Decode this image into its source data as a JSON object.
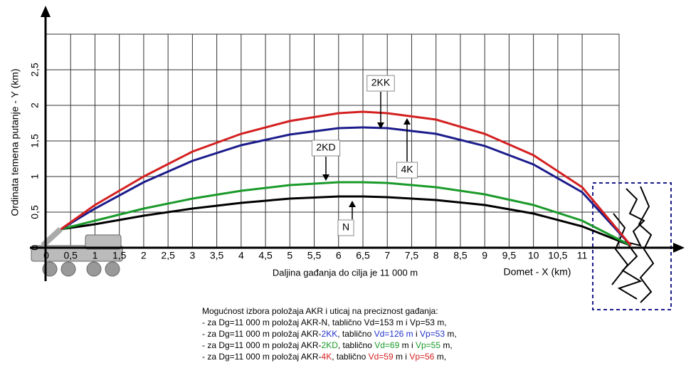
{
  "chart_data": {
    "type": "line",
    "ylabel": "Ordinata temena putanje - Y (km)",
    "xlabel": "Domet - X (km)",
    "note": "Daljina gađanja do cilja je 11 000 m",
    "xlim": [
      0,
      13
    ],
    "ylim": [
      0,
      3
    ],
    "xticks": [
      0,
      {
        "value": 0.5,
        "label": "0,5"
      },
      1,
      {
        "value": 1.5,
        "label": "1,5"
      },
      2,
      {
        "value": 2.5,
        "label": "2,5"
      },
      3,
      {
        "value": 3.5,
        "label": "3,5"
      },
      4,
      {
        "value": 4.5,
        "label": "4,5"
      },
      5,
      {
        "value": 5.5,
        "label": "5,5"
      },
      6,
      {
        "value": 6.5,
        "label": "6,5"
      },
      7,
      {
        "value": 7.5,
        "label": "7,5"
      },
      8,
      {
        "value": 8.5,
        "label": "8,5"
      },
      9,
      {
        "value": 9.5,
        "label": "9,5"
      },
      10,
      {
        "value": 10.5,
        "label": "10,5"
      },
      11
    ],
    "yticks": [
      0,
      {
        "value": 0.5,
        "label": "0,5"
      },
      1,
      {
        "value": 1.5,
        "label": "1,5"
      },
      2,
      {
        "value": 2.5,
        "label": "2,5"
      }
    ],
    "grid": true,
    "x": [
      0.3,
      1,
      2,
      3,
      4,
      5,
      6,
      6.5,
      7,
      8,
      9,
      10,
      11,
      12
    ],
    "series": [
      {
        "name": "N",
        "color": "#000000",
        "values": [
          0.26,
          0.33,
          0.45,
          0.55,
          0.63,
          0.69,
          0.72,
          0.72,
          0.71,
          0.67,
          0.6,
          0.48,
          0.3,
          0.03
        ]
      },
      {
        "name": "2KD",
        "color": "#1a9a2a",
        "values": [
          0.26,
          0.38,
          0.55,
          0.69,
          0.8,
          0.88,
          0.92,
          0.92,
          0.91,
          0.85,
          0.75,
          0.6,
          0.38,
          0.03
        ]
      },
      {
        "name": "2KK",
        "color": "#1c1c8c",
        "values": [
          0.26,
          0.55,
          0.92,
          1.22,
          1.44,
          1.59,
          1.68,
          1.69,
          1.68,
          1.6,
          1.43,
          1.17,
          0.78,
          0.03
        ]
      },
      {
        "name": "4K",
        "color": "#d42020",
        "values": [
          0.26,
          0.6,
          1.0,
          1.35,
          1.6,
          1.78,
          1.89,
          1.91,
          1.89,
          1.8,
          1.6,
          1.3,
          0.85,
          0.03
        ]
      }
    ],
    "caption": {
      "title": "Mogućnost izbora položaja AKR i uticaj na preciznost gađanja:",
      "lines": [
        [
          {
            "text": "- za Dg=11 000 m položaj AKR-N, tablično Vd=153 m i Vp=53 m,",
            "color": "#000000"
          }
        ],
        [
          {
            "text": "- za Dg=11 000 m položaj AKR-",
            "color": "#000000"
          },
          {
            "text": "2KK",
            "color": "#2233cc"
          },
          {
            "text": ", tablično ",
            "color": "#000000"
          },
          {
            "text": "Vd=126 m",
            "color": "#2233cc"
          },
          {
            "text": " i ",
            "color": "#000000"
          },
          {
            "text": "Vp=53",
            "color": "#2233cc"
          },
          {
            "text": " m,",
            "color": "#000000"
          }
        ],
        [
          {
            "text": "- za Dg=11 000 m položaj AKR-",
            "color": "#000000"
          },
          {
            "text": "2KD",
            "color": "#1a9a2a"
          },
          {
            "text": ", tablično ",
            "color": "#000000"
          },
          {
            "text": "Vd=69",
            "color": "#1a9a2a"
          },
          {
            "text": " m i ",
            "color": "#000000"
          },
          {
            "text": "Vp=55",
            "color": "#1a9a2a"
          },
          {
            "text": " m,",
            "color": "#000000"
          }
        ],
        [
          {
            "text": "- za Dg=11 000 m položaj AKR-",
            "color": "#000000"
          },
          {
            "text": "4K",
            "color": "#d42020"
          },
          {
            "text": ", tablično ",
            "color": "#000000"
          },
          {
            "text": "Vd=59",
            "color": "#d42020"
          },
          {
            "text": " m i ",
            "color": "#000000"
          },
          {
            "text": "Vp=56",
            "color": "#d42020"
          },
          {
            "text": " m,",
            "color": "#000000"
          }
        ]
      ]
    }
  }
}
